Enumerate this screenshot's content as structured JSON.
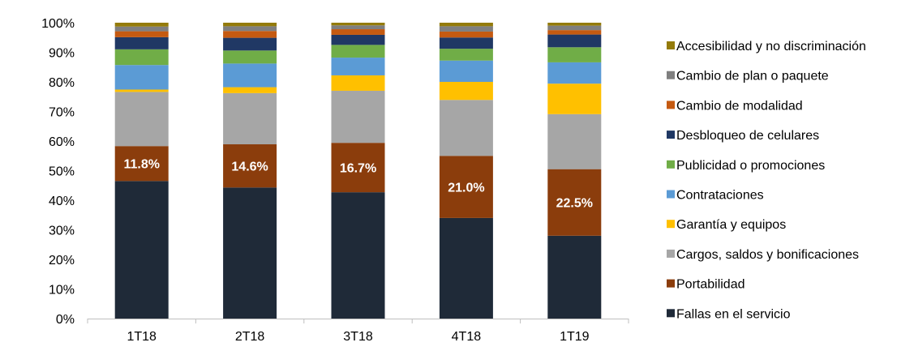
{
  "chart_data": {
    "type": "bar",
    "stacked": true,
    "percent": true,
    "categories": [
      "1T18",
      "2T18",
      "3T18",
      "4T18",
      "1T19"
    ],
    "ylim": [
      0,
      100
    ],
    "yticks": [
      "0%",
      "10%",
      "20%",
      "30%",
      "40%",
      "50%",
      "60%",
      "70%",
      "80%",
      "90%",
      "100%"
    ],
    "legend_position": "right",
    "series": [
      {
        "name": "Fallas en el servicio",
        "color": "#1f2a38",
        "values": [
          46.5,
          44.3,
          42.7,
          34.0,
          28.0
        ]
      },
      {
        "name": "Portabilidad",
        "color": "#8b3d0c",
        "values": [
          11.8,
          14.6,
          16.7,
          21.0,
          22.5
        ],
        "labels": [
          "11.8%",
          "14.6%",
          "16.7%",
          "21.0%",
          "22.5%"
        ]
      },
      {
        "name": "Cargos, saldos y bonificaciones",
        "color": "#a6a6a6",
        "values": [
          18.3,
          17.3,
          17.6,
          18.9,
          18.6
        ]
      },
      {
        "name": "Garantía y equipos",
        "color": "#ffc000",
        "values": [
          0.8,
          2.0,
          5.2,
          6.1,
          10.3
        ]
      },
      {
        "name": "Contrataciones",
        "color": "#5b9bd5",
        "values": [
          8.3,
          8.0,
          6.0,
          7.2,
          7.2
        ]
      },
      {
        "name": "Publicidad o promociones",
        "color": "#70ad47",
        "values": [
          5.3,
          4.4,
          4.3,
          4.0,
          5.1
        ]
      },
      {
        "name": "Desbloqueo de celulares",
        "color": "#203864",
        "values": [
          4.1,
          4.3,
          3.4,
          3.8,
          4.3
        ]
      },
      {
        "name": "Cambio de modalidad",
        "color": "#c55a11",
        "values": [
          2.0,
          2.3,
          1.9,
          2.0,
          1.5
        ]
      },
      {
        "name": "Cambio de plan o paquete",
        "color": "#7f7f7f",
        "values": [
          1.6,
          1.6,
          1.3,
          1.8,
          1.5
        ]
      },
      {
        "name": "Accesibilidad y no discriminación",
        "color": "#947b0a",
        "values": [
          1.3,
          1.2,
          0.9,
          1.2,
          1.0
        ]
      }
    ]
  }
}
